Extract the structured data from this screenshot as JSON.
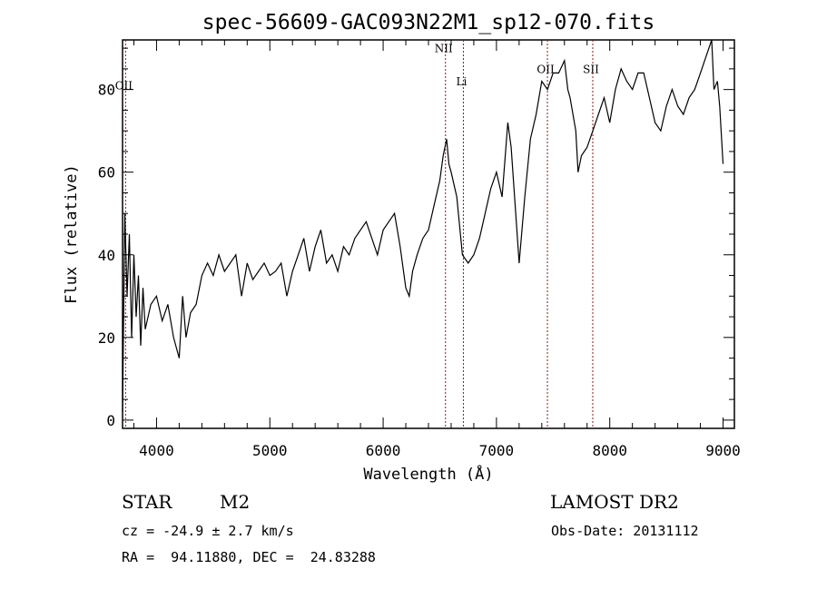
{
  "chart_data": {
    "type": "line",
    "title": "spec-56609-GAC093N22M1_sp12-070.fits",
    "xlabel": "Wavelength (Å)",
    "ylabel": "Flux (relative)",
    "xlim": [
      3700,
      9100
    ],
    "ylim": [
      -2,
      92
    ],
    "x_ticks": [
      4000,
      5000,
      6000,
      7000,
      8000,
      9000
    ],
    "y_ticks": [
      0,
      20,
      40,
      60,
      80
    ],
    "grid": false,
    "series": [
      {
        "x": [
          3700,
          3720,
          3740,
          3760,
          3780,
          3800,
          3820,
          3840,
          3860,
          3880,
          3900,
          3950,
          4000,
          4050,
          4100,
          4150,
          4200,
          4230,
          4260,
          4300,
          4350,
          4400,
          4450,
          4500,
          4550,
          4600,
          4650,
          4700,
          4750,
          4800,
          4850,
          4900,
          4950,
          5000,
          5050,
          5100,
          5150,
          5200,
          5250,
          5300,
          5350,
          5400,
          5450,
          5500,
          5550,
          5600,
          5650,
          5700,
          5750,
          5800,
          5850,
          5900,
          5950,
          6000,
          6050,
          6100,
          6150,
          6200,
          6230,
          6260,
          6300,
          6350,
          6400,
          6450,
          6500,
          6530,
          6560,
          6580,
          6600,
          6650,
          6700,
          6750,
          6800,
          6850,
          6900,
          6950,
          7000,
          7050,
          7100,
          7130,
          7150,
          7200,
          7250,
          7300,
          7350,
          7400,
          7450,
          7500,
          7550,
          7600,
          7630,
          7650,
          7700,
          7720,
          7750,
          7800,
          7850,
          7900,
          7950,
          8000,
          8050,
          8100,
          8150,
          8200,
          8250,
          8300,
          8350,
          8400,
          8450,
          8500,
          8550,
          8600,
          8650,
          8700,
          8750,
          8800,
          8850,
          8900,
          8920,
          8950,
          8970,
          9000
        ],
        "y": [
          2,
          50,
          30,
          45,
          20,
          40,
          25,
          35,
          18,
          32,
          22,
          28,
          30,
          24,
          28,
          20,
          15,
          30,
          20,
          26,
          28,
          35,
          38,
          35,
          40,
          36,
          38,
          40,
          30,
          38,
          34,
          36,
          38,
          35,
          36,
          38,
          30,
          36,
          40,
          44,
          36,
          42,
          46,
          38,
          40,
          36,
          42,
          40,
          44,
          46,
          48,
          44,
          40,
          46,
          48,
          50,
          42,
          32,
          30,
          36,
          40,
          44,
          46,
          52,
          58,
          64,
          68,
          62,
          60,
          54,
          40,
          38,
          40,
          44,
          50,
          56,
          60,
          54,
          72,
          66,
          58,
          38,
          54,
          68,
          74,
          82,
          80,
          84,
          84,
          87,
          80,
          78,
          70,
          60,
          64,
          66,
          70,
          74,
          78,
          72,
          80,
          85,
          82,
          80,
          84,
          84,
          78,
          72,
          70,
          76,
          80,
          76,
          74,
          78,
          80,
          84,
          88,
          92,
          80,
          82,
          76,
          62
        ]
      }
    ],
    "line_markers": [
      {
        "name": "OII",
        "x": 3727,
        "label_y": 80
      },
      {
        "name": "NII",
        "x": 6550,
        "label_y": 89
      },
      {
        "name": "Li",
        "x": 6708,
        "label_y": 81
      },
      {
        "name": "OII",
        "x": 7450,
        "label_y": 84
      },
      {
        "name": "SII",
        "x": 7850,
        "label_y": 84
      }
    ]
  },
  "info": {
    "object_class": "STAR",
    "subclass": "M2",
    "survey": "LAMOST DR2",
    "cz_line": "cz = -24.9 ± 2.7 km/s",
    "obs_date_line": "Obs-Date: 20131112",
    "coords_line": "RA =  94.11880, DEC =  24.83288"
  },
  "colors": {
    "spectrum": "#000000",
    "marker_line": "#8b1a1a",
    "background": "#ffffff"
  }
}
